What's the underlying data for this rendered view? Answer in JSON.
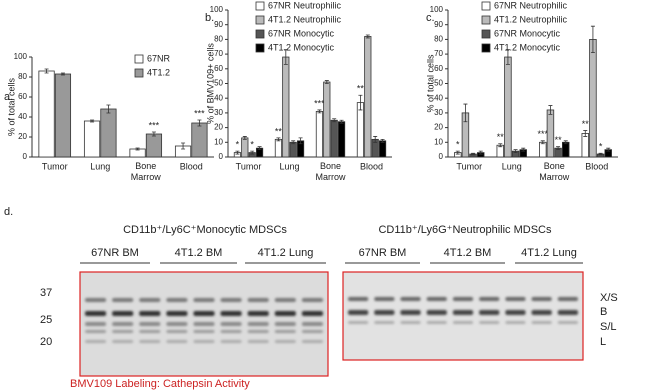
{
  "chart_data": [
    {
      "type": "bar",
      "panel": "a.",
      "ylabel": "% of total cells",
      "categories": [
        "Tumor",
        "Lung",
        "Bone Marrow",
        "Blood"
      ],
      "series": [
        {
          "name": "67NR",
          "color": "#ffffff",
          "values": [
            86,
            36,
            8,
            11
          ],
          "errors": [
            2,
            1,
            1,
            3
          ]
        },
        {
          "name": "4T1.2",
          "color": "#999999",
          "values": [
            83,
            48,
            23,
            34
          ],
          "errors": [
            1,
            4,
            2,
            3
          ]
        }
      ],
      "significance": [
        [
          null,
          null
        ],
        [
          null,
          null
        ],
        [
          null,
          "***"
        ],
        [
          null,
          "***"
        ]
      ],
      "ylim": [
        0,
        100
      ],
      "yticks": [
        0,
        20,
        40,
        60,
        80,
        100
      ],
      "grid": false
    },
    {
      "type": "bar",
      "panel": "b.",
      "ylabel": "% of BMV109+ cells",
      "categories": [
        "Tumor",
        "Lung",
        "Bone Marrow",
        "Blood"
      ],
      "series": [
        {
          "name": "67NR Neutrophilic",
          "color": "#ffffff",
          "values": [
            3,
            12,
            31,
            37
          ],
          "errors": [
            1,
            1,
            1,
            5
          ]
        },
        {
          "name": "4T1.2 Neutrophilic",
          "color": "#bbbbbb",
          "values": [
            13,
            68,
            51,
            82
          ],
          "errors": [
            1,
            5,
            1,
            1
          ]
        },
        {
          "name": "67NR Monocytic",
          "color": "#555555",
          "values": [
            3,
            10,
            25,
            12
          ],
          "errors": [
            1,
            1,
            1,
            2
          ]
        },
        {
          "name": "4T1.2 Monocytic",
          "color": "#000000",
          "values": [
            6,
            11,
            24,
            11
          ],
          "errors": [
            1,
            2,
            1,
            1
          ]
        }
      ],
      "significance": [
        [
          "*",
          null,
          "*",
          null
        ],
        [
          "**",
          null,
          null,
          null
        ],
        [
          "***",
          null,
          null,
          null
        ],
        [
          "**",
          null,
          null,
          null
        ]
      ],
      "ylim": [
        0,
        100
      ],
      "yticks": [
        0,
        10,
        20,
        30,
        40,
        50,
        60,
        70,
        80,
        90,
        100
      ],
      "grid": false
    },
    {
      "type": "bar",
      "panel": "c.",
      "ylabel": "% of total cells",
      "categories": [
        "Tumor",
        "Lung",
        "Bone Marrow",
        "Blood"
      ],
      "series": [
        {
          "name": "67NR Neutrophilic",
          "color": "#ffffff",
          "values": [
            3,
            8,
            10,
            16
          ],
          "errors": [
            1,
            1,
            1,
            2
          ]
        },
        {
          "name": "4T1.2 Neutrophilic",
          "color": "#bbbbbb",
          "values": [
            30,
            68,
            32,
            80
          ],
          "errors": [
            6,
            5,
            3,
            9
          ]
        },
        {
          "name": "67NR Monocytic",
          "color": "#555555",
          "values": [
            2,
            4,
            6,
            2
          ],
          "errors": [
            0.5,
            1,
            1,
            0.5
          ]
        },
        {
          "name": "4T1.2 Monocytic",
          "color": "#000000",
          "values": [
            3,
            5,
            10,
            5
          ],
          "errors": [
            1,
            1,
            1,
            1
          ]
        }
      ],
      "significance": [
        [
          "*",
          null,
          null,
          null
        ],
        [
          "**",
          null,
          null,
          null
        ],
        [
          "***",
          null,
          "**",
          null
        ],
        [
          "**",
          null,
          "*",
          null
        ]
      ],
      "ylim": [
        0,
        100
      ],
      "yticks": [
        0,
        10,
        20,
        30,
        40,
        50,
        60,
        70,
        80,
        90,
        100
      ],
      "grid": false
    }
  ],
  "blot": {
    "panel": "d.",
    "left": {
      "title": "CD11b⁺/Ly6C⁺Monocytic MDSCs",
      "groups": [
        "67NR BM",
        "4T1.2 BM",
        "4T1.2 Lung"
      ]
    },
    "right": {
      "title": "CD11b⁺/Ly6G⁺Neutrophilic MDSCs",
      "groups": [
        "67NR BM",
        "4T1.2 BM",
        "4T1.2 Lung"
      ]
    },
    "markers": [
      "37",
      "25",
      "20"
    ],
    "band_labels": [
      "X/S",
      "B",
      "S/L",
      "L"
    ],
    "caption": "BMV109 Labeling: Cathepsin Activity"
  }
}
